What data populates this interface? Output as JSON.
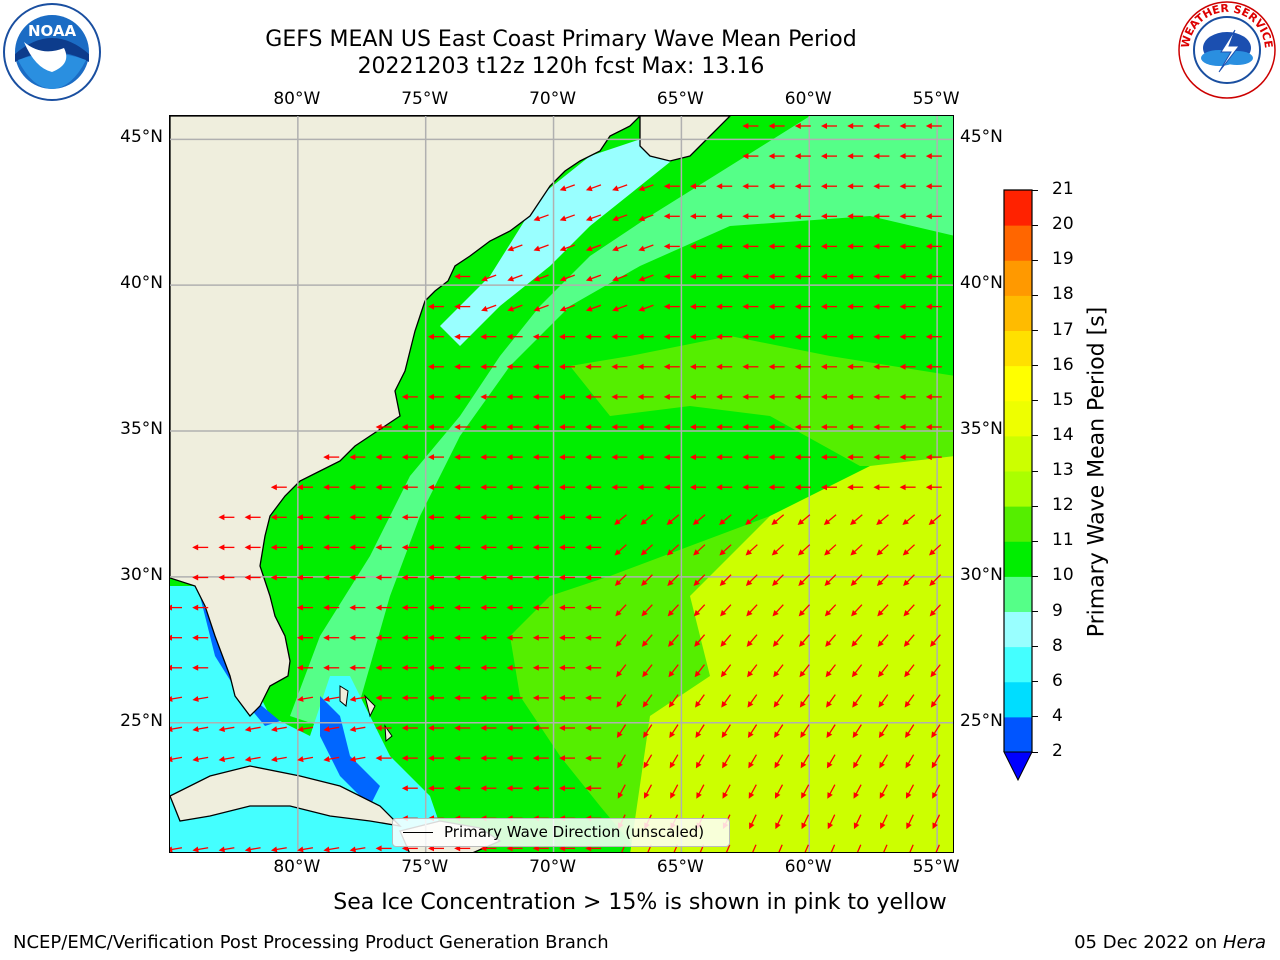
{
  "title": {
    "line1": "GEFS MEAN US East Coast Primary Wave Mean Period",
    "line2": "20221203 t12z 120h fcst   Max: 13.16"
  },
  "logos": {
    "left": {
      "name": "noaa-logo",
      "text": "NOAA",
      "ring_text": "NATIONAL OCEANIC AND ATMOSPHERIC ADMINISTRATION · U.S. DEPARTMENT OF COMMERCE"
    },
    "right": {
      "name": "nws-logo",
      "ring_text": "NATIONAL WEATHER SERVICE"
    }
  },
  "map": {
    "lon_labels": [
      "80°W",
      "75°W",
      "70°W",
      "65°W",
      "60°W",
      "55°W"
    ],
    "lat_labels": [
      "45°N",
      "40°N",
      "35°N",
      "30°N",
      "25°N"
    ],
    "lon_values": [
      -80,
      -75,
      -70,
      -65,
      -60,
      -55
    ],
    "lat_values": [
      45,
      40,
      35,
      30,
      25
    ],
    "extent": {
      "lon_min": -85,
      "lon_max": -54.3,
      "lat_min": 20.5,
      "lat_max": 45.8
    },
    "legend_label": "Primary Wave Direction (unscaled)",
    "colors": {
      "land": "#efeedd",
      "arrows": "#ff0000",
      "coast": "#000000",
      "grid": "#b0b0b0"
    }
  },
  "colorbar": {
    "label": "Primary Wave Mean Period [s]",
    "ticks": [
      "2",
      "4",
      "6",
      "8",
      "9",
      "10",
      "11",
      "12",
      "13",
      "14",
      "15",
      "16",
      "17",
      "18",
      "19",
      "20",
      "21"
    ],
    "colors": [
      "#0055ff",
      "#00ddff",
      "#44ffff",
      "#99ffff",
      "#55ff88",
      "#00ee00",
      "#55ee00",
      "#aaff00",
      "#ccff00",
      "#eeff00",
      "#ffff00",
      "#ffe000",
      "#ffbb00",
      "#ff9900",
      "#ff6600",
      "#ff2200",
      "#ff0000"
    ],
    "extend_color": "#0000ff"
  },
  "subtitle": "Sea Ice Concentration > 15% is shown in pink to yellow",
  "footer": {
    "left": "NCEP/EMC/Verification Post Processing Product Generation Branch",
    "date": "05 Dec 2022 on ",
    "machine": "Hera"
  }
}
